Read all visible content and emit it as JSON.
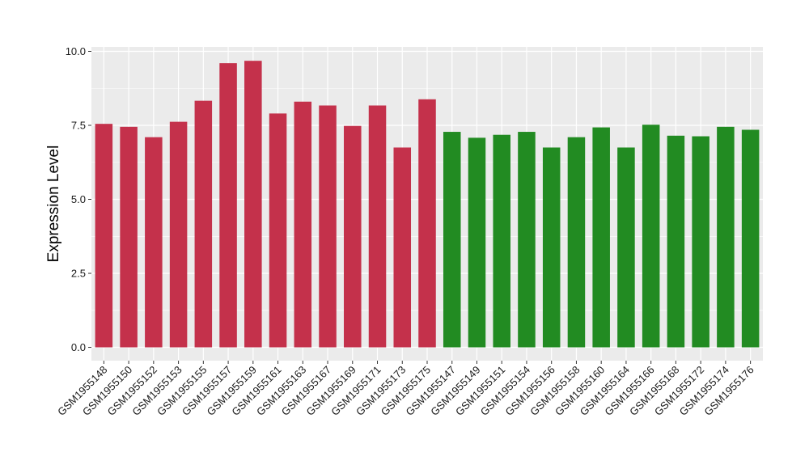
{
  "chart_data": {
    "type": "bar",
    "title": "",
    "xlabel": "",
    "ylabel": "Expression Level",
    "ylim": [
      -0.45,
      10.15
    ],
    "yticks": [
      "0.0",
      "2.5",
      "5.0",
      "7.5",
      "10.0"
    ],
    "ytick_values": [
      0,
      2.5,
      5.0,
      7.5,
      10.0
    ],
    "grid": true,
    "legend": "none",
    "categories": [
      "GSM1955148",
      "GSM1955150",
      "GSM1955152",
      "GSM1955153",
      "GSM1955155",
      "GSM1955157",
      "GSM1955159",
      "GSM1955161",
      "GSM1955163",
      "GSM1955167",
      "GSM1955169",
      "GSM1955171",
      "GSM1955173",
      "GSM1955175",
      "GSM1955147",
      "GSM1955149",
      "GSM1955151",
      "GSM1955154",
      "GSM1955156",
      "GSM1955158",
      "GSM1955160",
      "GSM1955164",
      "GSM1955166",
      "GSM1955168",
      "GSM1955172",
      "GSM1955174",
      "GSM1955176"
    ],
    "values": [
      7.55,
      7.45,
      7.1,
      7.62,
      8.33,
      9.6,
      9.68,
      7.9,
      8.3,
      8.17,
      7.48,
      8.17,
      6.75,
      8.38,
      7.28,
      7.08,
      7.18,
      7.28,
      6.75,
      7.1,
      7.43,
      6.75,
      7.52,
      7.15,
      7.13,
      7.45,
      7.35
    ],
    "bar_colors": [
      "#c4314b",
      "#c4314b",
      "#c4314b",
      "#c4314b",
      "#c4314b",
      "#c4314b",
      "#c4314b",
      "#c4314b",
      "#c4314b",
      "#c4314b",
      "#c4314b",
      "#c4314b",
      "#c4314b",
      "#c4314b",
      "#228b22",
      "#228b22",
      "#228b22",
      "#228b22",
      "#228b22",
      "#228b22",
      "#228b22",
      "#228b22",
      "#228b22",
      "#228b22",
      "#228b22",
      "#228b22",
      "#228b22"
    ],
    "panel_color": "#ebebeb",
    "grid_color": "#ffffff"
  }
}
